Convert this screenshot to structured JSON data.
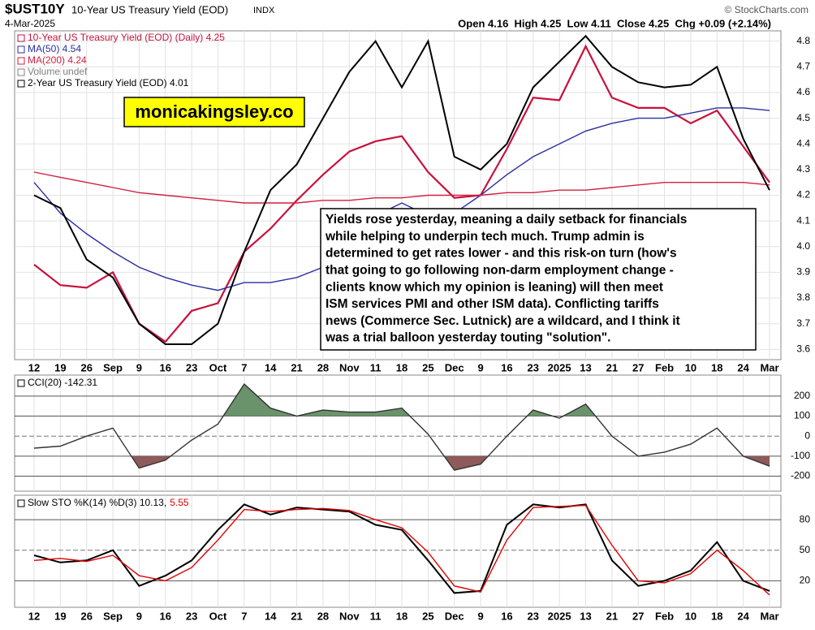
{
  "header": {
    "symbol": "$UST10Y",
    "name": "10-Year US Treasury Yield (EOD)",
    "exchange": "INDX",
    "date": "4-Mar-2025",
    "quote": "Open 4.16  High 4.25  Low 4.11  Close 4.25  Chg +0.09 (+2.14%)",
    "copyright": "© StockCharts.com"
  },
  "watermark": "monicakingsley.co",
  "annotation": [
    "Yields rose yesterday, meaning a daily setback for financials",
    "while helping to underpin tech much. Trump admin is",
    "determined to get rates lower - and this risk-on turn (how's",
    "that going to go following non-darm employment change -",
    "clients know which my opinion is leaning) will then meet",
    "ISM services PMI and other ISM data). Conflicting tariffs",
    "news (Commerce Sec. Lutnick) are a wildcard, and I think it",
    "was a trial balloon yesterday touting \"solution\"."
  ],
  "chart_data": [
    {
      "type": "line",
      "grid": true,
      "categories": [
        "12",
        "19",
        "26",
        "Sep",
        "9",
        "16",
        "23",
        "Oct",
        "7",
        "14",
        "21",
        "28",
        "Nov",
        "11",
        "18",
        "25",
        "Dec",
        "9",
        "16",
        "23",
        "2025",
        "13",
        "21",
        "27",
        "Feb",
        "10",
        "18",
        "24",
        "Mar"
      ],
      "ylim": [
        3.56,
        4.84
      ],
      "yticks": [
        3.6,
        3.7,
        3.8,
        3.9,
        {
          "value": 4,
          "label": "4.0"
        },
        4.1,
        4.2,
        4.3,
        4.4,
        4.5,
        4.6,
        4.7,
        4.8
      ],
      "series": [
        {
          "name": "10-Year US Treasury Yield (EOD) (Daily) 4.25",
          "color": "#c8123c",
          "values": [
            3.93,
            3.85,
            3.84,
            3.9,
            3.7,
            3.63,
            3.75,
            3.78,
            3.98,
            4.07,
            4.18,
            4.28,
            4.37,
            4.41,
            4.43,
            4.29,
            4.19,
            4.2,
            4.38,
            4.58,
            4.57,
            4.78,
            4.58,
            4.54,
            4.54,
            4.48,
            4.53,
            4.39,
            4.25
          ]
        },
        {
          "name": "MA(50) 4.54",
          "color": "#2b2fa0",
          "values": [
            4.25,
            4.13,
            4.05,
            3.98,
            3.92,
            3.88,
            3.85,
            3.83,
            3.86,
            3.86,
            3.88,
            3.92,
            4.02,
            4.12,
            4.17,
            4.12,
            4.13,
            4.2,
            4.28,
            4.35,
            4.4,
            4.45,
            4.48,
            4.5,
            4.5,
            4.52,
            4.54,
            4.54,
            4.53
          ]
        },
        {
          "name": "MA(200) 4.24",
          "color": "#d0213f",
          "values": [
            4.29,
            4.27,
            4.25,
            4.23,
            4.21,
            4.2,
            4.19,
            4.18,
            4.17,
            4.17,
            4.17,
            4.18,
            4.18,
            4.19,
            4.19,
            4.2,
            4.2,
            4.2,
            4.21,
            4.21,
            4.22,
            4.22,
            4.23,
            4.24,
            4.25,
            4.25,
            4.25,
            4.25,
            4.24
          ]
        },
        {
          "name": "Volume undef",
          "color": "#808080",
          "values": [
            null,
            null,
            null,
            null,
            null,
            null,
            null,
            null,
            null,
            null,
            null,
            null,
            null,
            null,
            null,
            null,
            null,
            null,
            null,
            null,
            null,
            null,
            null,
            null,
            null,
            null,
            null,
            null,
            null
          ]
        },
        {
          "name": "2-Year US Treasury Yield (EOD) 4.01",
          "color": "#000000",
          "values": [
            4.2,
            4.15,
            3.95,
            3.88,
            3.7,
            3.62,
            3.62,
            3.7,
            3.98,
            4.22,
            4.32,
            4.5,
            4.68,
            4.8,
            4.62,
            4.8,
            4.35,
            4.3,
            4.4,
            4.62,
            4.72,
            4.82,
            4.7,
            4.64,
            4.62,
            4.63,
            4.7,
            4.42,
            4.22
          ]
        }
      ]
    },
    {
      "type": "line",
      "grid": true,
      "title": "CCI(20) -142.31",
      "categories": [
        "12",
        "19",
        "26",
        "Sep",
        "9",
        "16",
        "23",
        "Oct",
        "7",
        "14",
        "21",
        "28",
        "Nov",
        "11",
        "18",
        "25",
        "Dec",
        "9",
        "16",
        "23",
        "2025",
        "13",
        "21",
        "27",
        "Feb",
        "10",
        "18",
        "24",
        "Mar"
      ],
      "ylim": [
        -275,
        305
      ],
      "yticks": [
        -200,
        -100,
        0,
        100,
        200
      ],
      "fill_above": {
        "level": 100,
        "color": "#6b936b"
      },
      "fill_below": {
        "level": -100,
        "color": "#8e5a5a"
      },
      "series": [
        {
          "color": "#333333",
          "values": [
            -60,
            -50,
            0,
            40,
            -160,
            -120,
            -20,
            60,
            260,
            140,
            100,
            130,
            120,
            120,
            140,
            10,
            -170,
            -140,
            0,
            130,
            90,
            160,
            0,
            -100,
            -80,
            -40,
            40,
            -100,
            -150
          ]
        }
      ]
    },
    {
      "type": "line",
      "grid": true,
      "title": "Slow STO %K(14) %D(3) 10.13,",
      "title_value": "5.55",
      "title_value_color": "#e00000",
      "categories": [
        "12",
        "19",
        "26",
        "Sep",
        "9",
        "16",
        "23",
        "Oct",
        "7",
        "14",
        "21",
        "28",
        "Nov",
        "11",
        "18",
        "25",
        "Dec",
        "9",
        "16",
        "23",
        "2025",
        "13",
        "21",
        "27",
        "Feb",
        "10",
        "18",
        "24",
        "Mar"
      ],
      "ylim": [
        -6,
        104
      ],
      "yticks": [
        20,
        50,
        80
      ],
      "series": [
        {
          "color": "#000000",
          "values": [
            45,
            38,
            40,
            50,
            15,
            25,
            40,
            70,
            95,
            85,
            92,
            90,
            88,
            75,
            70,
            40,
            8,
            10,
            75,
            95,
            92,
            95,
            40,
            15,
            20,
            30,
            58,
            20,
            10
          ]
        },
        {
          "color": "#e00000",
          "values": [
            40,
            42,
            39,
            45,
            25,
            20,
            33,
            60,
            90,
            88,
            90,
            91,
            89,
            80,
            72,
            48,
            15,
            9,
            60,
            92,
            93,
            94,
            55,
            20,
            18,
            27,
            50,
            30,
            6
          ]
        }
      ]
    }
  ]
}
